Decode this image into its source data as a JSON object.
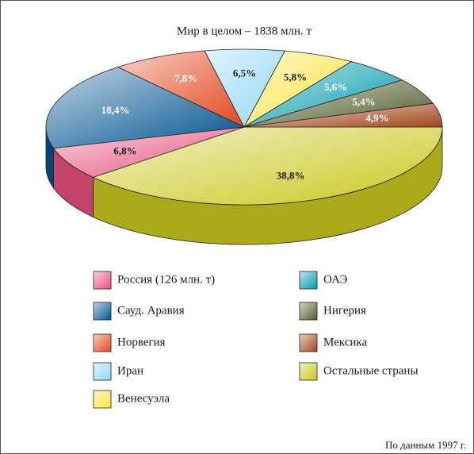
{
  "chart_data": {
    "type": "pie",
    "title": "Мир в целом – 1838 млн. т",
    "note": "По данным 1997 г.",
    "categories": [
      "Остальные страны",
      "Россия (126 млн. т)",
      "Сауд. Аравия",
      "Норвегия",
      "Иран",
      "Венесуэла",
      "ОАЭ",
      "Нигерия",
      "Мексика"
    ],
    "values": [
      38.8,
      6.8,
      18.4,
      7.8,
      6.5,
      5.8,
      5.6,
      5.4,
      4.9
    ],
    "value_labels": [
      "38,8%",
      "6,8%",
      "18,4%",
      "7,8%",
      "6,5%",
      "5,8%",
      "5,6%",
      "5,4%",
      "4,9%"
    ],
    "colors": [
      "#c9c820",
      "#e8507e",
      "#00528f",
      "#e2461c",
      "#8ed6f5",
      "#ffe23a",
      "#0099ab",
      "#4e5c2a",
      "#a3461b"
    ]
  }
}
